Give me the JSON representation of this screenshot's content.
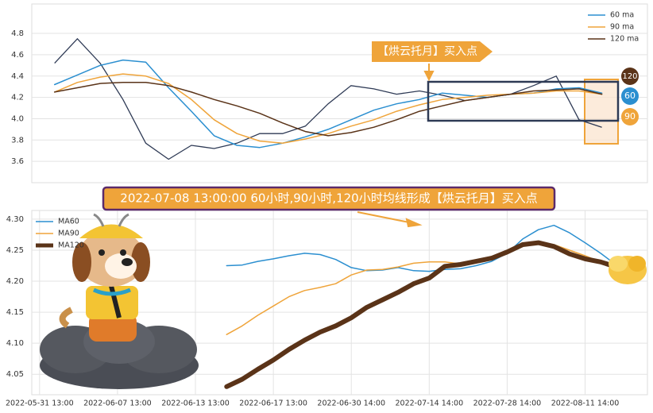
{
  "chart_data": [
    {
      "type": "line",
      "x": [
        0,
        4,
        8,
        12,
        16,
        20,
        24,
        28,
        32,
        36,
        40,
        44,
        48,
        52,
        56,
        60,
        64,
        68,
        72,
        76,
        80,
        84,
        88,
        92,
        96
      ],
      "xlim": [
        -4,
        104
      ],
      "values": [
        4.52,
        4.75,
        4.52,
        4.18,
        3.77,
        3.62,
        3.75,
        3.72,
        3.77,
        3.86,
        3.86,
        3.93,
        4.14,
        4.31,
        4.28,
        4.23,
        4.26,
        4.22,
        4.17,
        4.2,
        4.23,
        4.31,
        4.4,
        3.99,
        3.92
      ],
      "color": "#2e3a55",
      "series": [
        {
          "name": "60 ma",
          "color": "#2b8fd0",
          "values": [
            4.32,
            4.41,
            4.5,
            4.55,
            4.53,
            4.29,
            4.07,
            3.84,
            3.75,
            3.73,
            3.77,
            3.83,
            3.9,
            3.99,
            4.08,
            4.14,
            4.18,
            4.24,
            4.22,
            4.2,
            4.23,
            4.24,
            4.28,
            4.29,
            4.24
          ]
        },
        {
          "name": "90 ma",
          "color": "#efa43a",
          "values": [
            4.25,
            4.34,
            4.39,
            4.42,
            4.4,
            4.33,
            4.18,
            3.99,
            3.86,
            3.79,
            3.77,
            3.81,
            3.86,
            3.93,
            3.99,
            4.07,
            4.13,
            4.18,
            4.2,
            4.22,
            4.23,
            4.24,
            4.26,
            4.26,
            4.23
          ]
        },
        {
          "name": "120 ma",
          "color": "#5a3318",
          "values": [
            4.25,
            4.29,
            4.33,
            4.34,
            4.34,
            4.31,
            4.25,
            4.18,
            4.12,
            4.05,
            3.96,
            3.88,
            3.84,
            3.87,
            3.92,
            3.99,
            4.07,
            4.12,
            4.17,
            4.2,
            4.23,
            4.26,
            4.27,
            4.28,
            4.23
          ]
        }
      ],
      "ylim": [
        3.4,
        5.076
      ],
      "yticks": [
        3.6,
        3.8,
        {
          "value": 4,
          "label": "4.0"
        },
        4.2,
        4.4,
        4.6,
        4.8
      ],
      "grid": true,
      "legend": "top-right",
      "annotation": "【烘云托月】买入点",
      "badges": [
        "120",
        "60",
        "90"
      ]
    },
    {
      "type": "line",
      "x": [
        24,
        26,
        28,
        30,
        32,
        34,
        36,
        38,
        40,
        42,
        44,
        46,
        48,
        50,
        52,
        54,
        56,
        58,
        60,
        62,
        64,
        66,
        68,
        70,
        72,
        74
      ],
      "xlim": [
        -1,
        78
      ],
      "xticks": [
        {
          "value": 0,
          "label": "2022-05-31 13:00"
        },
        {
          "value": 10,
          "label": "2022-06-07 13:00"
        },
        {
          "value": 20,
          "label": "2022-06-13 13:00"
        },
        {
          "value": 30,
          "label": "2022-06-17 13:00"
        },
        {
          "value": 40,
          "label": "2022-06-30 14:00"
        },
        {
          "value": 50,
          "label": "2022-07-14 14:00"
        },
        {
          "value": 60,
          "label": "2022-07-28 14:00"
        },
        {
          "value": 70,
          "label": "2022-08-11 14:00"
        }
      ],
      "series": [
        {
          "name": "MA60",
          "color": "#2b8fd0",
          "width": 1.5,
          "values": [
            4.225,
            4.226,
            4.232,
            4.236,
            4.241,
            4.245,
            4.243,
            4.235,
            4.222,
            4.217,
            4.218,
            4.222,
            4.217,
            4.216,
            4.219,
            4.22,
            4.225,
            4.232,
            4.245,
            4.268,
            4.283,
            4.29,
            4.278,
            4.262,
            4.245,
            4.226
          ]
        },
        {
          "name": "MA90",
          "color": "#efa43a",
          "width": 1.5,
          "values": [
            4.114,
            4.128,
            4.145,
            4.16,
            4.175,
            4.185,
            4.19,
            4.196,
            4.21,
            4.218,
            4.219,
            4.223,
            4.229,
            4.231,
            4.231,
            4.228,
            4.232,
            4.238,
            4.246,
            4.259,
            4.263,
            4.259,
            4.25,
            4.241,
            4.231,
            4.223
          ]
        },
        {
          "name": "MA120",
          "color": "#5a3318",
          "width": 6,
          "values": [
            4.03,
            4.042,
            4.058,
            4.073,
            4.09,
            4.105,
            4.118,
            4.128,
            4.141,
            4.158,
            4.17,
            4.182,
            4.196,
            4.205,
            4.224,
            4.227,
            4.232,
            4.237,
            4.247,
            4.259,
            4.262,
            4.256,
            4.244,
            4.236,
            4.231,
            4.223
          ]
        }
      ],
      "ylim": [
        4.017,
        4.314
      ],
      "yticks": [
        4.05,
        {
          "value": 4.1,
          "label": "4.10"
        },
        4.15,
        {
          "value": 4.2,
          "label": "4.20"
        },
        4.25,
        {
          "value": 4.3,
          "label": "4.30"
        }
      ],
      "grid": true,
      "legend": "top-left",
      "annotation": "2022-07-08 13:00:00 60小时,90小时,120小时均线形成【烘云托月】买入点"
    }
  ]
}
